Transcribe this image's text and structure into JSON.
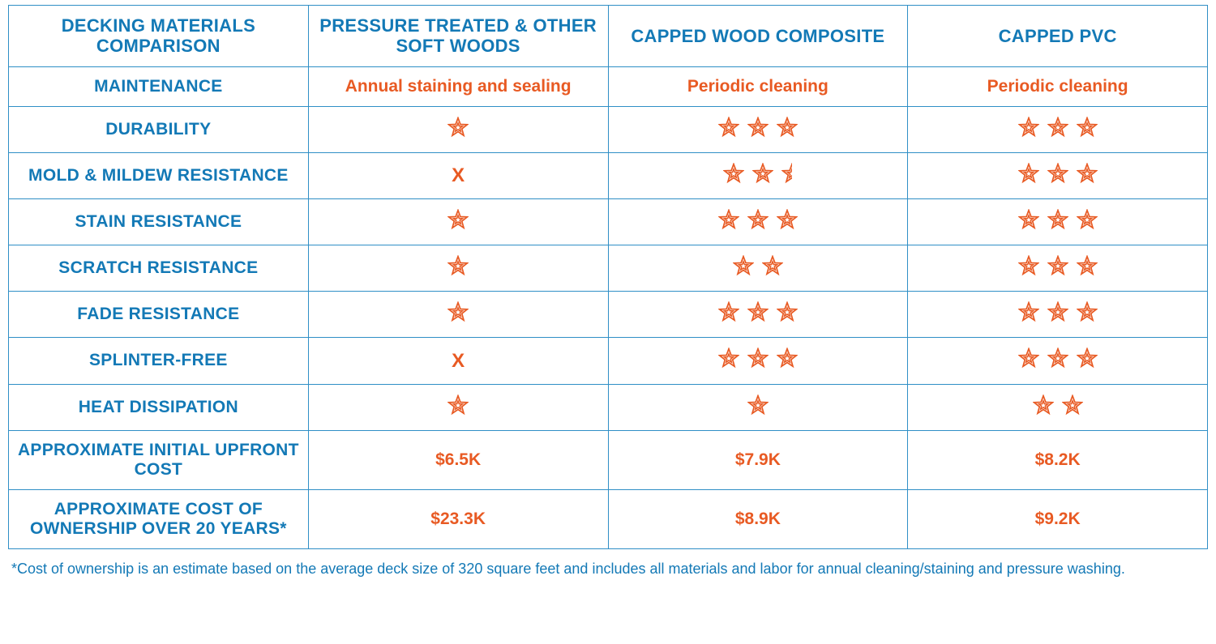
{
  "colors": {
    "border": "#2f8fc6",
    "heading": "#1379b6",
    "value": "#e85a23",
    "star_stroke": "#e85a23",
    "star_fill": "#ffffff",
    "background": "#ffffff"
  },
  "style": {
    "heading_font_size": 22,
    "rowlabel_font_size": 21,
    "value_font_size": 21,
    "footnote_font_size": 18,
    "star_size": 26,
    "star_gap": 10,
    "star_stroke_width": 1.6,
    "border_width": 1
  },
  "columns": [
    "DECKING MATERIALS COMPARISON",
    "PRESSURE TREATED & OTHER SOFT WOODS",
    "CAPPED WOOD COMPOSITE",
    "CAPPED PVC"
  ],
  "rows": [
    {
      "label": "MAINTENANCE",
      "cells": [
        {
          "type": "text",
          "value": "Annual staining and sealing"
        },
        {
          "type": "text",
          "value": "Periodic cleaning"
        },
        {
          "type": "text",
          "value": "Periodic cleaning"
        }
      ]
    },
    {
      "label": "DURABILITY",
      "cells": [
        {
          "type": "stars",
          "value": 1
        },
        {
          "type": "stars",
          "value": 3
        },
        {
          "type": "stars",
          "value": 3
        }
      ]
    },
    {
      "label": "MOLD & MILDEW RESISTANCE",
      "cells": [
        {
          "type": "x",
          "value": "X"
        },
        {
          "type": "stars",
          "value": 2.5
        },
        {
          "type": "stars",
          "value": 3
        }
      ]
    },
    {
      "label": "STAIN RESISTANCE",
      "cells": [
        {
          "type": "stars",
          "value": 1
        },
        {
          "type": "stars",
          "value": 3
        },
        {
          "type": "stars",
          "value": 3
        }
      ]
    },
    {
      "label": "SCRATCH RESISTANCE",
      "cells": [
        {
          "type": "stars",
          "value": 1
        },
        {
          "type": "stars",
          "value": 2
        },
        {
          "type": "stars",
          "value": 3
        }
      ]
    },
    {
      "label": "FADE RESISTANCE",
      "cells": [
        {
          "type": "stars",
          "value": 1
        },
        {
          "type": "stars",
          "value": 3
        },
        {
          "type": "stars",
          "value": 3
        }
      ]
    },
    {
      "label": "SPLINTER-FREE",
      "cells": [
        {
          "type": "x",
          "value": "X"
        },
        {
          "type": "stars",
          "value": 3
        },
        {
          "type": "stars",
          "value": 3
        }
      ]
    },
    {
      "label": "HEAT DISSIPATION",
      "cells": [
        {
          "type": "stars",
          "value": 1
        },
        {
          "type": "stars",
          "value": 1
        },
        {
          "type": "stars",
          "value": 2
        }
      ]
    },
    {
      "label": "APPROXIMATE INITIAL UPFRONT COST",
      "cells": [
        {
          "type": "text",
          "value": "$6.5K"
        },
        {
          "type": "text",
          "value": "$7.9K"
        },
        {
          "type": "text",
          "value": "$8.2K"
        }
      ]
    },
    {
      "label": "APPROXIMATE COST OF OWNERSHIP OVER 20 YEARS*",
      "cells": [
        {
          "type": "text",
          "value": "$23.3K"
        },
        {
          "type": "text",
          "value": "$8.9K"
        },
        {
          "type": "text",
          "value": "$9.2K"
        }
      ]
    }
  ],
  "footnote": "*Cost of ownership is an estimate based on the average deck size of 320 square feet and includes all materials and labor for annual cleaning/staining and pressure washing."
}
